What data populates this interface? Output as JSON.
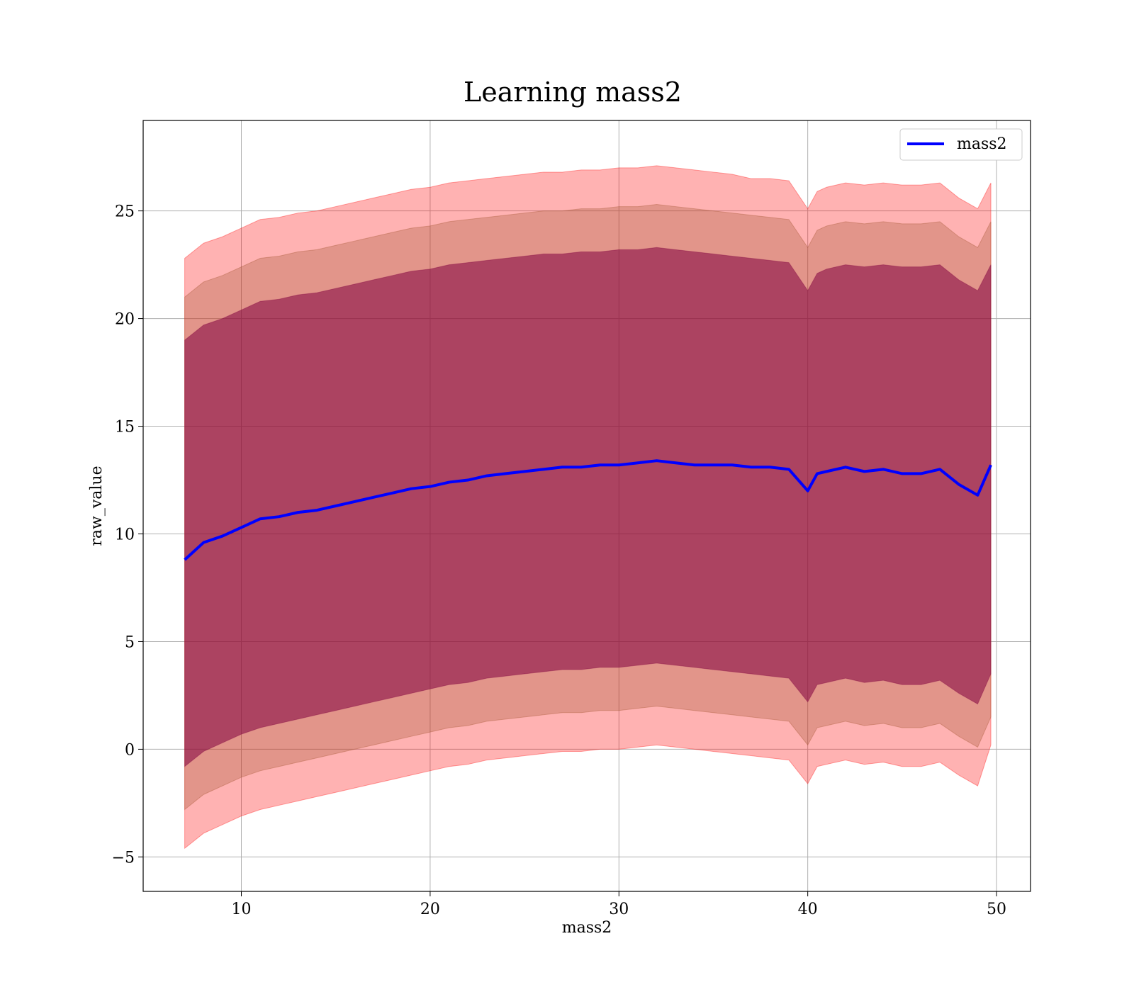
{
  "chart_data": {
    "type": "line",
    "title": "Learning mass2",
    "xlabel": "mass2",
    "ylabel": "raw_value",
    "xlim": [
      4.8,
      51.8
    ],
    "ylim": [
      -6.6,
      29.2
    ],
    "xticks": [
      10,
      20,
      30,
      40,
      50
    ],
    "yticks": [
      -5,
      0,
      5,
      10,
      15,
      20,
      25
    ],
    "ytick_labels": [
      "−5",
      "0",
      "5",
      "10",
      "15",
      "20",
      "25"
    ],
    "grid": true,
    "legend_position": "top-right",
    "x": [
      7.0,
      8.0,
      9.0,
      10.0,
      11.0,
      12.0,
      13.0,
      14.0,
      15.0,
      16.0,
      17.0,
      18.0,
      19.0,
      20.0,
      21.0,
      22.0,
      23.0,
      24.0,
      25.0,
      26.0,
      27.0,
      28.0,
      29.0,
      30.0,
      31.0,
      32.0,
      33.0,
      34.0,
      35.0,
      36.0,
      37.0,
      38.0,
      39.0,
      40.0,
      40.5,
      41.0,
      42.0,
      43.0,
      44.0,
      45.0,
      46.0,
      47.0,
      48.0,
      49.0,
      49.7
    ],
    "series": [
      {
        "name": "mass2",
        "color": "#0000ff",
        "values": [
          8.8,
          9.6,
          9.9,
          10.3,
          10.7,
          10.8,
          11.0,
          11.1,
          11.3,
          11.5,
          11.7,
          11.9,
          12.1,
          12.2,
          12.4,
          12.5,
          12.7,
          12.8,
          12.9,
          13.0,
          13.1,
          13.1,
          13.2,
          13.2,
          13.3,
          13.4,
          13.3,
          13.2,
          13.2,
          13.2,
          13.1,
          13.1,
          13.0,
          12.0,
          12.8,
          12.9,
          13.1,
          12.9,
          13.0,
          12.8,
          12.8,
          13.0,
          12.3,
          11.8,
          13.2
        ]
      }
    ],
    "bands": [
      {
        "name": "outer",
        "color": "#ff0000",
        "opacity": 0.3,
        "upper": [
          22.8,
          23.5,
          23.8,
          24.2,
          24.6,
          24.7,
          24.9,
          25.0,
          25.2,
          25.4,
          25.6,
          25.8,
          26.0,
          26.1,
          26.3,
          26.4,
          26.5,
          26.6,
          26.7,
          26.8,
          26.8,
          26.9,
          26.9,
          27.0,
          27.0,
          27.1,
          27.0,
          26.9,
          26.8,
          26.7,
          26.5,
          26.5,
          26.4,
          25.1,
          25.9,
          26.1,
          26.3,
          26.2,
          26.3,
          26.2,
          26.2,
          26.3,
          25.6,
          25.1,
          26.3
        ],
        "lower": [
          -4.6,
          -3.9,
          -3.5,
          -3.1,
          -2.8,
          -2.6,
          -2.4,
          -2.2,
          -2.0,
          -1.8,
          -1.6,
          -1.4,
          -1.2,
          -1.0,
          -0.8,
          -0.7,
          -0.5,
          -0.4,
          -0.3,
          -0.2,
          -0.1,
          -0.1,
          0.0,
          0.0,
          0.1,
          0.2,
          0.1,
          0.0,
          -0.1,
          -0.2,
          -0.3,
          -0.4,
          -0.5,
          -1.6,
          -0.8,
          -0.7,
          -0.5,
          -0.7,
          -0.6,
          -0.8,
          -0.8,
          -0.6,
          -1.2,
          -1.7,
          0.2
        ]
      },
      {
        "name": "middle",
        "color": "#a0522d",
        "opacity": 0.3,
        "upper": [
          21.0,
          21.7,
          22.0,
          22.4,
          22.8,
          22.9,
          23.1,
          23.2,
          23.4,
          23.6,
          23.8,
          24.0,
          24.2,
          24.3,
          24.5,
          24.6,
          24.7,
          24.8,
          24.9,
          25.0,
          25.0,
          25.1,
          25.1,
          25.2,
          25.2,
          25.3,
          25.2,
          25.1,
          25.0,
          24.9,
          24.8,
          24.7,
          24.6,
          23.3,
          24.1,
          24.3,
          24.5,
          24.4,
          24.5,
          24.4,
          24.4,
          24.5,
          23.8,
          23.3,
          24.5
        ],
        "lower": [
          -2.8,
          -2.1,
          -1.7,
          -1.3,
          -1.0,
          -0.8,
          -0.6,
          -0.4,
          -0.2,
          0.0,
          0.2,
          0.4,
          0.6,
          0.8,
          1.0,
          1.1,
          1.3,
          1.4,
          1.5,
          1.6,
          1.7,
          1.7,
          1.8,
          1.8,
          1.9,
          2.0,
          1.9,
          1.8,
          1.7,
          1.6,
          1.5,
          1.4,
          1.3,
          0.2,
          1.0,
          1.1,
          1.3,
          1.1,
          1.2,
          1.0,
          1.0,
          1.2,
          0.6,
          0.1,
          1.5
        ]
      },
      {
        "name": "inner",
        "color": "#800040",
        "opacity": 0.55,
        "upper": [
          19.0,
          19.7,
          20.0,
          20.4,
          20.8,
          20.9,
          21.1,
          21.2,
          21.4,
          21.6,
          21.8,
          22.0,
          22.2,
          22.3,
          22.5,
          22.6,
          22.7,
          22.8,
          22.9,
          23.0,
          23.0,
          23.1,
          23.1,
          23.2,
          23.2,
          23.3,
          23.2,
          23.1,
          23.0,
          22.9,
          22.8,
          22.7,
          22.6,
          21.3,
          22.1,
          22.3,
          22.5,
          22.4,
          22.5,
          22.4,
          22.4,
          22.5,
          21.8,
          21.3,
          22.5
        ],
        "lower": [
          -0.8,
          -0.1,
          0.3,
          0.7,
          1.0,
          1.2,
          1.4,
          1.6,
          1.8,
          2.0,
          2.2,
          2.4,
          2.6,
          2.8,
          3.0,
          3.1,
          3.3,
          3.4,
          3.5,
          3.6,
          3.7,
          3.7,
          3.8,
          3.8,
          3.9,
          4.0,
          3.9,
          3.8,
          3.7,
          3.6,
          3.5,
          3.4,
          3.3,
          2.2,
          3.0,
          3.1,
          3.3,
          3.1,
          3.2,
          3.0,
          3.0,
          3.2,
          2.6,
          2.1,
          3.5
        ]
      }
    ]
  }
}
